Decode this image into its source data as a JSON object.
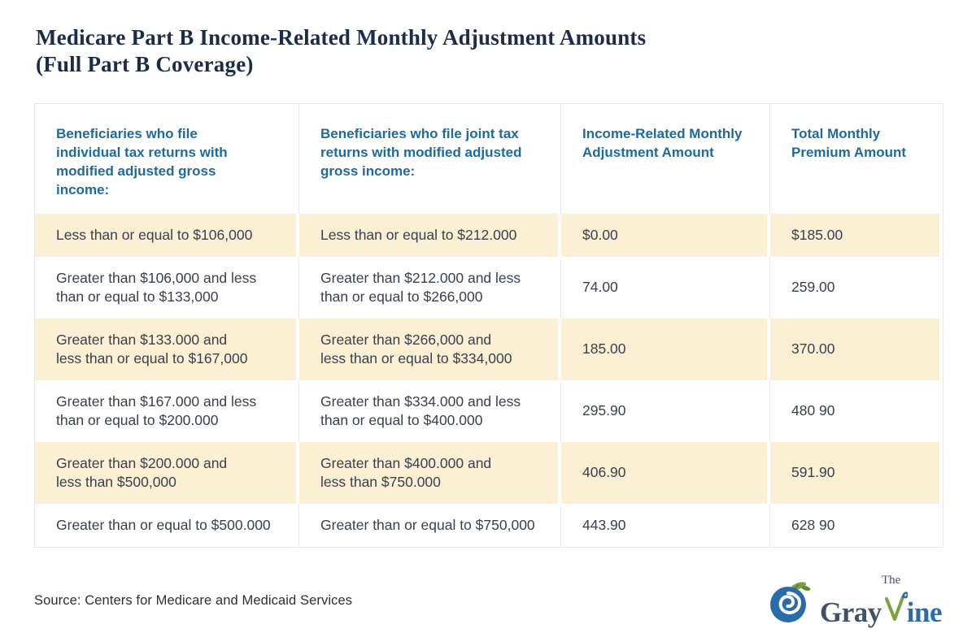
{
  "title": "Medicare Part B Income-Related Monthly Adjustment Amounts\n(Full Part B Coverage)",
  "table": {
    "headers": [
      "Beneficiaries who file\nindividual tax returns with\nmodified adjusted gross\nincome:",
      "Beneficiaries who file joint tax\nreturns with modified adjusted\ngross income:",
      "Income-Related Monthly\nAdjustment Amount",
      "Total Monthly\nPremium Amount"
    ],
    "rows": [
      {
        "highlight": true,
        "cells": [
          "Less than or equal to $106,000",
          "Less than or equal to $212.000",
          "$0.00",
          "$185.00"
        ]
      },
      {
        "highlight": false,
        "cells": [
          "Greater than $106,000 and less\nthan or equal to $133,000",
          "Greater than $212.000 and less\nthan or equal to $266,000",
          "74.00",
          "259.00"
        ]
      },
      {
        "highlight": true,
        "cells": [
          "Greater than $133.000 and\nless than or equal to $167,000",
          "Greater than $266,000 and\nless than or equal to $334,000",
          "185.00",
          "370.00"
        ]
      },
      {
        "highlight": false,
        "cells": [
          "Greater than $167.000 and less\nthan or equal to $200.000",
          "Greater than $334.000 and less\nthan or equal to $400.000",
          "295.90",
          "480 90"
        ]
      },
      {
        "highlight": true,
        "cells": [
          "Greater than $200.000 and\nless than $500,000",
          "Greater than $400.000 and\nless than $750.000",
          "406.90",
          "591.90"
        ]
      },
      {
        "highlight": false,
        "cells": [
          "Greater than or equal to $500.000",
          "Greater than or equal to $750,000",
          "443.90",
          "628 90"
        ]
      }
    ]
  },
  "chart_data": {
    "type": "table",
    "title": "Medicare Part B Income-Related Monthly Adjustment Amounts (Full Part B Coverage)",
    "columns": [
      "Beneficiaries who file individual tax returns with modified adjusted gross income:",
      "Beneficiaries who file joint tax returns with modified adjusted gross income:",
      "Income-Related Monthly Adjustment Amount",
      "Total Monthly Premium Amount"
    ],
    "rows": [
      [
        "Less than or equal to $106,000",
        "Less than or equal to $212.000",
        "$0.00",
        "$185.00"
      ],
      [
        "Greater than $106,000 and less than or equal to $133,000",
        "Greater than $212.000 and less than or equal to $266,000",
        "74.00",
        "259.00"
      ],
      [
        "Greater than $133.000 and less than or equal to $167,000",
        "Greater than $266,000 and less than or equal to $334,000",
        "185.00",
        "370.00"
      ],
      [
        "Greater than $167.000 and less than or equal to $200.000",
        "Greater than $334.000 and less than or equal to $400.000",
        "295.90",
        "480 90"
      ],
      [
        "Greater than $200.000 and less than $500,000",
        "Greater than $400.000 and less than $750.000",
        "406.90",
        "591.90"
      ],
      [
        "Greater than or equal to $500.000",
        "Greater than or equal to $750,000",
        "443.90",
        "628 90"
      ]
    ],
    "row_highlight_color": "#fcf0d4",
    "header_text_color": "#1d6aa0"
  },
  "footer": {
    "source": "Source: Centers for Medicare and Medicaid Services"
  },
  "logo": {
    "the": "The",
    "gray": "Gray",
    "ine": "ine"
  },
  "colors": {
    "title_navy": "#1b2b4a",
    "header_blue": "#1d6aa0",
    "row_cream": "#fcf0d4",
    "cell_text": "#39404e",
    "logo_blue": "#2a6ca7",
    "logo_navy": "#41506b",
    "logo_green": "#7ca23f"
  }
}
